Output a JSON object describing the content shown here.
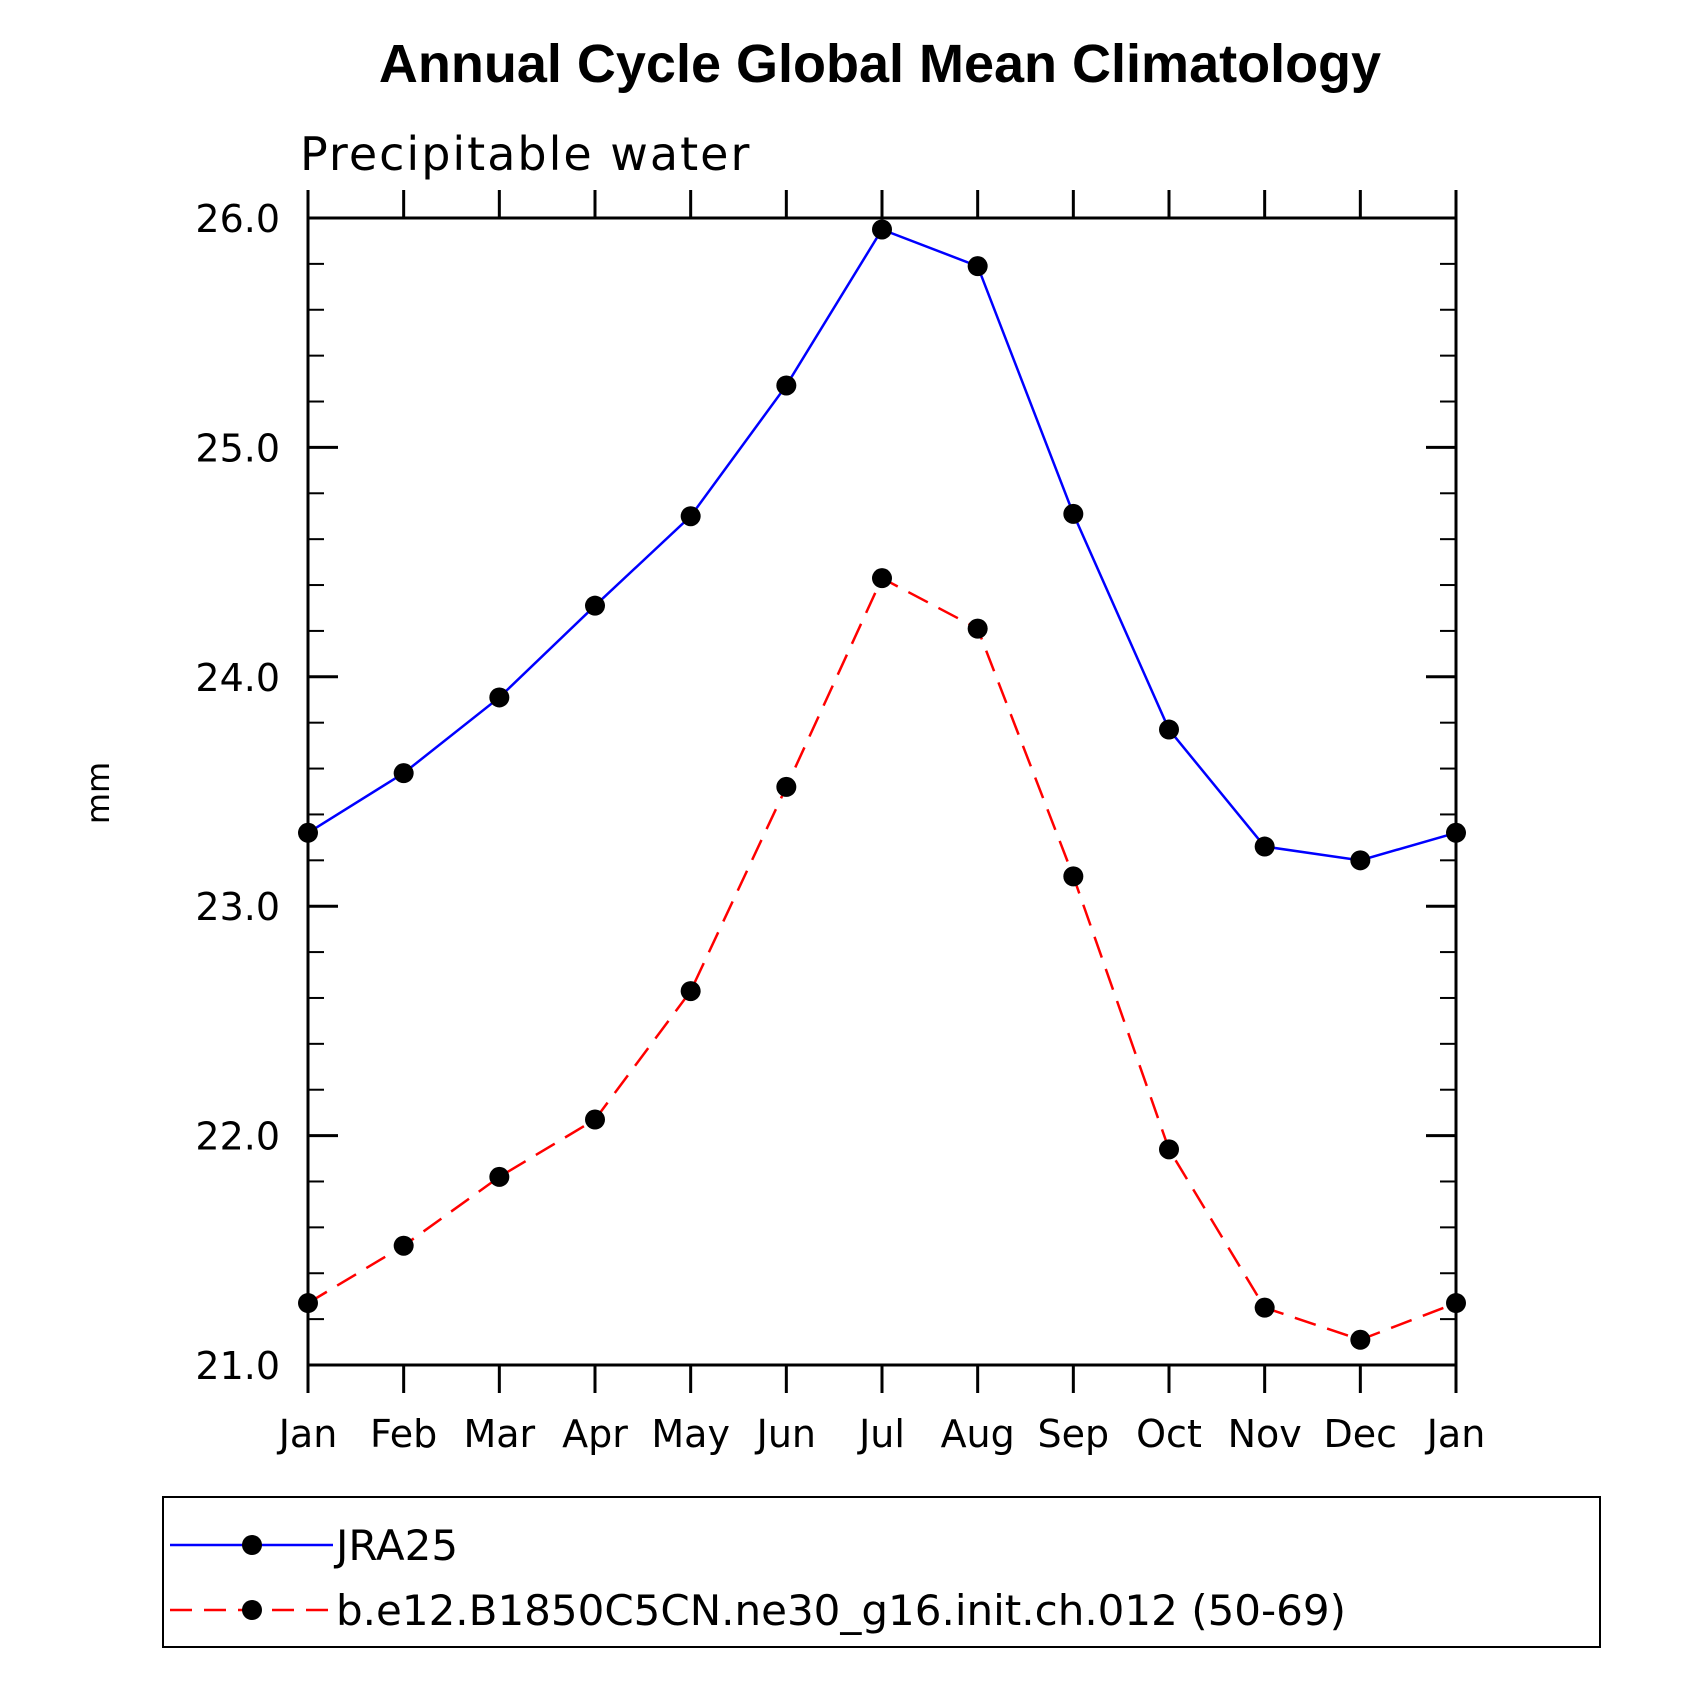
{
  "chart_data": {
    "type": "line",
    "title": "Annual Cycle Global Mean Climatology",
    "subtitle": "Precipitable water",
    "ylabel": "mm",
    "xlabel": "",
    "categories": [
      "Jan",
      "Feb",
      "Mar",
      "Apr",
      "May",
      "Jun",
      "Jul",
      "Aug",
      "Sep",
      "Oct",
      "Nov",
      "Dec",
      "Jan"
    ],
    "ylim": [
      21.0,
      26.0
    ],
    "yticks": [
      "21.0",
      "22.0",
      "23.0",
      "24.0",
      "25.0",
      "26.0"
    ],
    "yminor_step": 0.2,
    "grid": false,
    "legend_position": "bottom",
    "series": [
      {
        "name": "JRA25",
        "color": "#0000ff",
        "dash": "solid",
        "marker": "filled-circle",
        "values": [
          23.32,
          23.58,
          23.91,
          24.31,
          24.7,
          25.27,
          25.95,
          25.79,
          24.71,
          23.77,
          23.26,
          23.2,
          23.32
        ]
      },
      {
        "name": "b.e12.B1850C5CN.ne30_g16.init.ch.012 (50-69)",
        "color": "#ff0000",
        "dash": "dashed",
        "marker": "filled-circle",
        "values": [
          21.27,
          21.52,
          21.82,
          22.07,
          22.63,
          23.52,
          24.43,
          24.21,
          23.13,
          21.94,
          21.25,
          21.11,
          21.27
        ]
      }
    ]
  }
}
